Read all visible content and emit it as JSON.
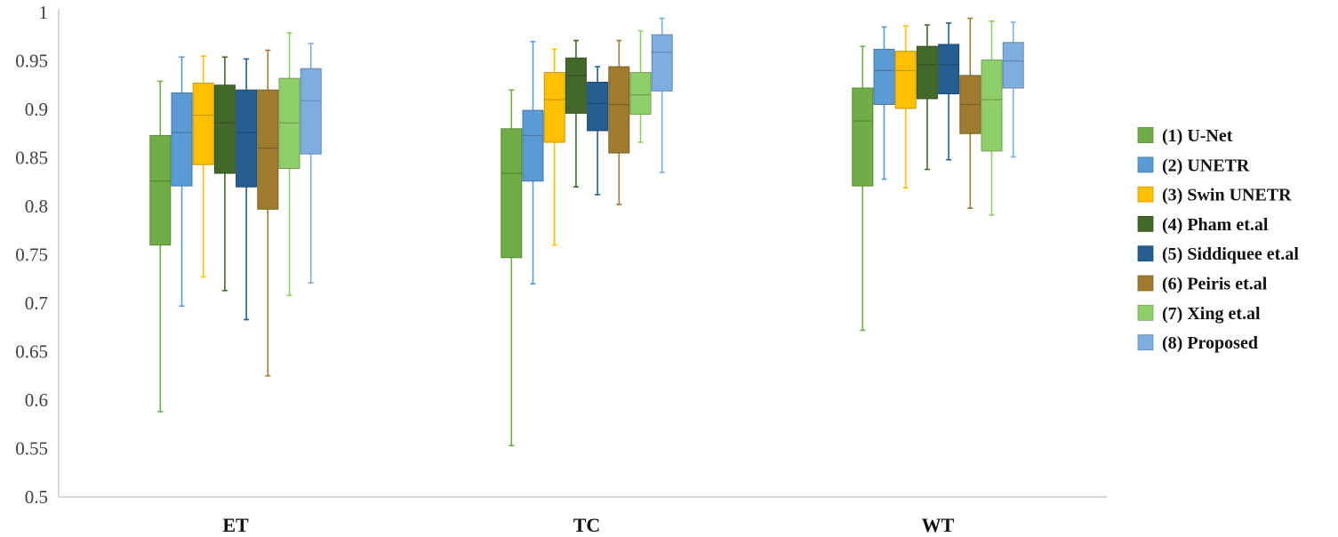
{
  "chart_data": {
    "type": "boxplot",
    "title": "",
    "xlabel": "",
    "ylabel": "",
    "ylim": [
      0.5,
      1.0
    ],
    "yticks": [
      0.5,
      0.55,
      0.6,
      0.65,
      0.7,
      0.75,
      0.8,
      0.85,
      0.9,
      0.95,
      1.0
    ],
    "ytick_labels": [
      "0.5",
      "0.55",
      "0.6",
      "0.65",
      "0.7",
      "0.75",
      "0.8",
      "0.85",
      "0.9",
      "0.95",
      "1"
    ],
    "grid": false,
    "legend_position": "right",
    "categories": [
      "ET",
      "TC",
      "WT"
    ],
    "series": [
      {
        "name": "(1) U-Net",
        "color": "#70AD47",
        "boxes": [
          {
            "min": 0.588,
            "q1": 0.76,
            "median": 0.826,
            "q3": 0.873,
            "max": 0.929
          },
          {
            "min": 0.553,
            "q1": 0.747,
            "median": 0.834,
            "q3": 0.88,
            "max": 0.92
          },
          {
            "min": 0.672,
            "q1": 0.821,
            "median": 0.888,
            "q3": 0.922,
            "max": 0.965
          }
        ]
      },
      {
        "name": "(2) UNETR",
        "color": "#5B9BD5",
        "boxes": [
          {
            "min": 0.697,
            "q1": 0.821,
            "median": 0.876,
            "q3": 0.917,
            "max": 0.954
          },
          {
            "min": 0.72,
            "q1": 0.826,
            "median": 0.873,
            "q3": 0.899,
            "max": 0.97
          },
          {
            "min": 0.828,
            "q1": 0.905,
            "median": 0.94,
            "q3": 0.962,
            "max": 0.985
          }
        ]
      },
      {
        "name": "(3) Swin UNETR",
        "color": "#FFC000",
        "boxes": [
          {
            "min": 0.727,
            "q1": 0.843,
            "median": 0.894,
            "q3": 0.927,
            "max": 0.955
          },
          {
            "min": 0.76,
            "q1": 0.866,
            "median": 0.91,
            "q3": 0.938,
            "max": 0.962
          },
          {
            "min": 0.819,
            "q1": 0.901,
            "median": 0.94,
            "q3": 0.96,
            "max": 0.986
          }
        ]
      },
      {
        "name": "(4) Pham et.al",
        "color": "#43682B",
        "boxes": [
          {
            "min": 0.713,
            "q1": 0.834,
            "median": 0.886,
            "q3": 0.925,
            "max": 0.954
          },
          {
            "min": 0.82,
            "q1": 0.896,
            "median": 0.935,
            "q3": 0.953,
            "max": 0.971
          },
          {
            "min": 0.838,
            "q1": 0.911,
            "median": 0.946,
            "q3": 0.965,
            "max": 0.987
          }
        ]
      },
      {
        "name": "(5) Siddiquee et.al",
        "color": "#255E91",
        "boxes": [
          {
            "min": 0.683,
            "q1": 0.82,
            "median": 0.876,
            "q3": 0.92,
            "max": 0.952
          },
          {
            "min": 0.812,
            "q1": 0.878,
            "median": 0.906,
            "q3": 0.928,
            "max": 0.944
          },
          {
            "min": 0.848,
            "q1": 0.916,
            "median": 0.946,
            "q3": 0.967,
            "max": 0.989
          }
        ]
      },
      {
        "name": "(6) Peiris et.al",
        "color": "#9E7B2F",
        "boxes": [
          {
            "min": 0.625,
            "q1": 0.797,
            "median": 0.86,
            "q3": 0.92,
            "max": 0.961
          },
          {
            "min": 0.802,
            "q1": 0.855,
            "median": 0.905,
            "q3": 0.944,
            "max": 0.971
          },
          {
            "min": 0.798,
            "q1": 0.875,
            "median": 0.905,
            "q3": 0.935,
            "max": 0.994
          }
        ]
      },
      {
        "name": "(7) Xing et.al",
        "color": "#8FCF6A",
        "boxes": [
          {
            "min": 0.708,
            "q1": 0.839,
            "median": 0.886,
            "q3": 0.932,
            "max": 0.979
          },
          {
            "min": 0.866,
            "q1": 0.895,
            "median": 0.915,
            "q3": 0.938,
            "max": 0.981
          },
          {
            "min": 0.791,
            "q1": 0.857,
            "median": 0.91,
            "q3": 0.951,
            "max": 0.991
          }
        ]
      },
      {
        "name": "(8) Proposed",
        "color": "#7EAEE0",
        "boxes": [
          {
            "min": 0.721,
            "q1": 0.854,
            "median": 0.909,
            "q3": 0.942,
            "max": 0.968
          },
          {
            "min": 0.835,
            "q1": 0.919,
            "median": 0.959,
            "q3": 0.977,
            "max": 0.994
          },
          {
            "min": 0.851,
            "q1": 0.922,
            "median": 0.95,
            "q3": 0.969,
            "max": 0.99
          }
        ]
      }
    ]
  }
}
